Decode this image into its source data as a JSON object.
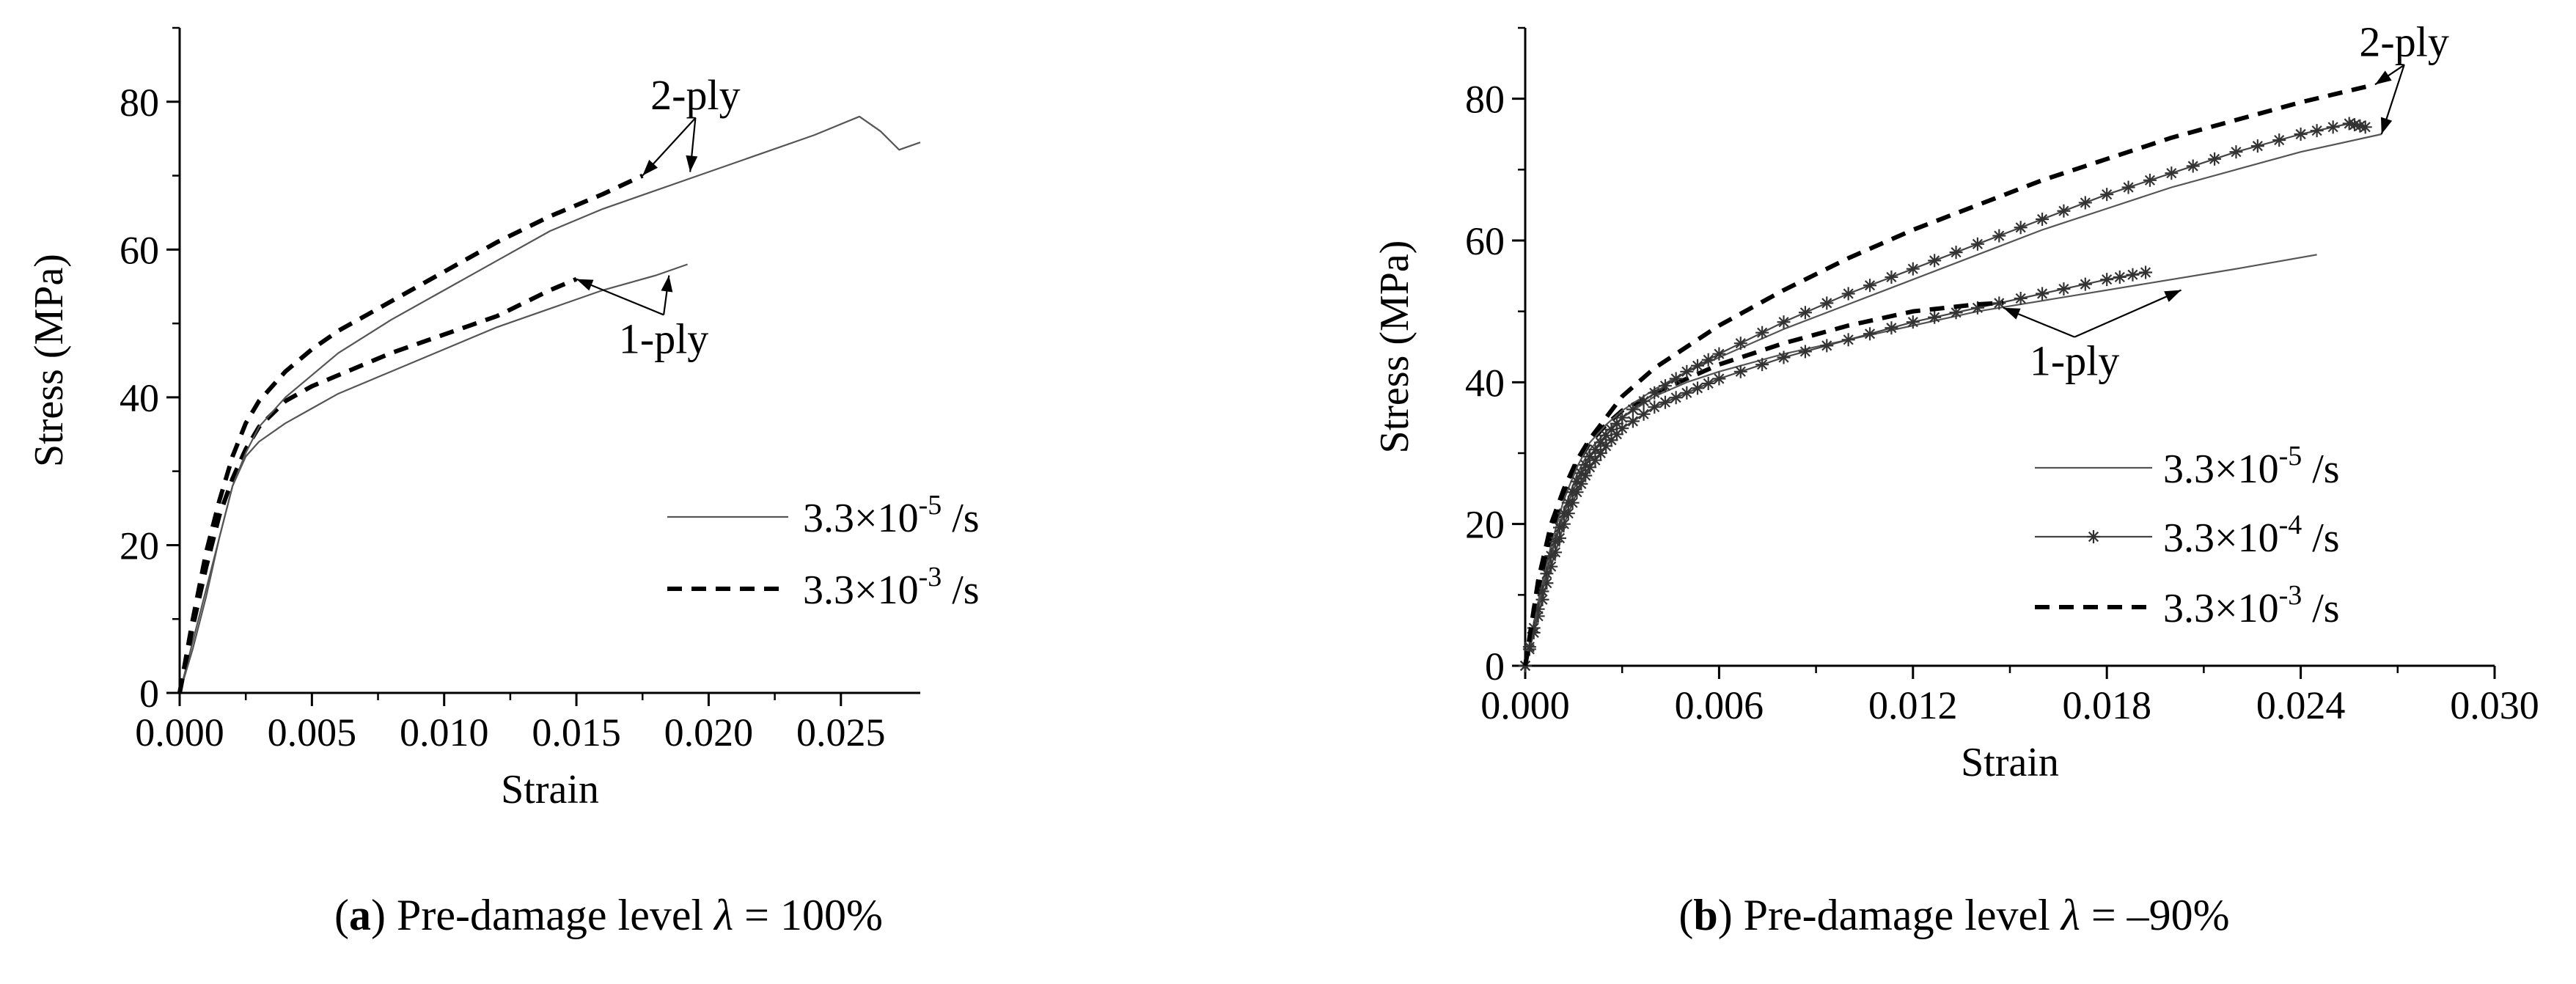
{
  "chart_data": [
    {
      "type": "line",
      "panel": "a",
      "caption": {
        "letter": "a",
        "text": " Pre-damage level ",
        "symbol": "λ",
        "value": " = 100%"
      },
      "xlabel": "Strain",
      "ylabel": "Stress (MPa)",
      "xlim": [
        0,
        0.028
      ],
      "ylim": [
        0,
        90
      ],
      "xticks": [
        {
          "value": 0,
          "label": "0.000"
        },
        {
          "value": 0.005,
          "label": "0.005"
        },
        {
          "value": 0.01,
          "label": "0.010"
        },
        {
          "value": 0.015,
          "label": "0.015"
        },
        {
          "value": 0.02,
          "label": "0.020"
        },
        {
          "value": 0.025,
          "label": "0.025"
        }
      ],
      "yticks": [
        {
          "value": 0,
          "label": "0"
        },
        {
          "value": 20,
          "label": "20"
        },
        {
          "value": 40,
          "label": "40"
        },
        {
          "value": 60,
          "label": "60"
        },
        {
          "value": 80,
          "label": "80"
        }
      ],
      "legend": [
        {
          "base": "3.3×10",
          "exp": "-5",
          "unit": " /s",
          "style": "solid"
        },
        {
          "base": "3.3×10",
          "exp": "-3",
          "unit": " /s",
          "style": "dashed"
        }
      ],
      "annotations": [
        {
          "text": "2-ply",
          "x": 0.0195,
          "y": 79,
          "arrows": [
            [
              0.0175,
              70
            ],
            [
              0.0193,
              70.5
            ]
          ]
        },
        {
          "text": "1-ply",
          "x": 0.0183,
          "y": 46,
          "arrows": [
            [
              0.015,
              56
            ],
            [
              0.0185,
              56.5
            ]
          ]
        }
      ],
      "series": [
        {
          "name": "1-ply 3.3×10^-5 /s",
          "style": "solid",
          "x": [
            0,
            0.0005,
            0.001,
            0.0015,
            0.002,
            0.0025,
            0.003,
            0.004,
            0.005,
            0.006,
            0.008,
            0.01,
            0.012,
            0.014,
            0.016,
            0.018,
            0.0192
          ],
          "y": [
            0,
            7,
            14,
            21,
            28,
            32,
            34,
            36.5,
            38.5,
            40.5,
            43.5,
            46.5,
            49.5,
            52,
            54.5,
            56.5,
            58
          ]
        },
        {
          "name": "1-ply 3.3×10^-3 /s",
          "style": "dashed",
          "x": [
            0,
            0.0005,
            0.001,
            0.0015,
            0.002,
            0.0025,
            0.003,
            0.004,
            0.005,
            0.006,
            0.008,
            0.01,
            0.012,
            0.014,
            0.015
          ],
          "y": [
            0,
            9,
            17,
            24,
            29,
            33,
            36,
            39.5,
            41.5,
            43,
            46,
            48.5,
            51,
            54.5,
            56
          ]
        },
        {
          "name": "2-ply 3.3×10^-5 /s",
          "style": "solid",
          "x": [
            0,
            0.0005,
            0.001,
            0.0015,
            0.002,
            0.0025,
            0.003,
            0.004,
            0.005,
            0.006,
            0.008,
            0.01,
            0.012,
            0.014,
            0.016,
            0.018,
            0.02,
            0.022,
            0.024,
            0.0257,
            0.0265,
            0.0272,
            0.028
          ],
          "y": [
            0,
            6,
            13,
            21,
            28,
            32.5,
            36,
            40,
            43,
            46,
            50.5,
            54.5,
            58.5,
            62.5,
            65.5,
            68,
            70.5,
            73,
            75.5,
            78,
            76,
            73.5,
            74.5
          ]
        },
        {
          "name": "2-ply 3.3×10^-3 /s",
          "style": "dashed",
          "x": [
            0,
            0.0005,
            0.001,
            0.0015,
            0.002,
            0.0025,
            0.003,
            0.004,
            0.005,
            0.006,
            0.008,
            0.01,
            0.012,
            0.014,
            0.016,
            0.0175
          ],
          "y": [
            0,
            10,
            19,
            26,
            32,
            36.5,
            39.5,
            43.5,
            46.5,
            49,
            53,
            57,
            61,
            64.5,
            67.5,
            70
          ]
        }
      ]
    },
    {
      "type": "line",
      "panel": "b",
      "caption": {
        "letter": "b",
        "text": " Pre-damage level ",
        "symbol": "λ",
        "value": " = –90%"
      },
      "xlabel": "Strain",
      "ylabel": "Stress (MPa)",
      "xlim": [
        0,
        0.03
      ],
      "ylim": [
        0,
        90
      ],
      "xticks": [
        {
          "value": 0,
          "label": "0.000"
        },
        {
          "value": 0.006,
          "label": "0.006"
        },
        {
          "value": 0.012,
          "label": "0.012"
        },
        {
          "value": 0.018,
          "label": "0.018"
        },
        {
          "value": 0.024,
          "label": "0.024"
        },
        {
          "value": 0.03,
          "label": "0.030"
        }
      ],
      "yticks": [
        {
          "value": 0,
          "label": "0"
        },
        {
          "value": 20,
          "label": "20"
        },
        {
          "value": 40,
          "label": "40"
        },
        {
          "value": 60,
          "label": "60"
        },
        {
          "value": 80,
          "label": "80"
        }
      ],
      "legend": [
        {
          "base": "3.3×10",
          "exp": "-5",
          "unit": " /s",
          "style": "solid"
        },
        {
          "base": "3.3×10",
          "exp": "-4",
          "unit": " /s",
          "style": "star"
        },
        {
          "base": "3.3×10",
          "exp": "-3",
          "unit": " /s",
          "style": "dashed"
        }
      ],
      "annotations": [
        {
          "text": "2-ply",
          "x": 0.0272,
          "y": 86,
          "arrows": [
            [
              0.0263,
              82
            ],
            [
              0.0265,
              75
            ]
          ]
        },
        {
          "text": "1-ply",
          "x": 0.017,
          "y": 41,
          "arrows": [
            [
              0.0148,
              50.5
            ],
            [
              0.0203,
              53
            ]
          ]
        }
      ],
      "series": [
        {
          "name": "1-ply 3.3×10^-5 /s",
          "style": "solid",
          "x": [
            0,
            0.0004,
            0.0008,
            0.0012,
            0.0016,
            0.002,
            0.0025,
            0.003,
            0.004,
            0.005,
            0.006,
            0.008,
            0.01,
            0.012,
            0.014,
            0.016,
            0.018,
            0.02,
            0.022,
            0.0245
          ],
          "y": [
            0,
            8,
            16,
            22,
            27,
            30.5,
            33,
            35,
            38,
            40,
            41.5,
            44,
            46,
            48,
            50,
            51.5,
            53,
            54.5,
            56,
            58
          ]
        },
        {
          "name": "1-ply 3.3×10^-4 /s",
          "style": "star",
          "x": [
            0,
            0.0004,
            0.0008,
            0.0012,
            0.0016,
            0.002,
            0.0025,
            0.003,
            0.004,
            0.005,
            0.006,
            0.008,
            0.01,
            0.012,
            0.014,
            0.016,
            0.018,
            0.0192
          ],
          "y": [
            0,
            7,
            14,
            20,
            24.5,
            28,
            31,
            33.5,
            36.5,
            38.5,
            40.5,
            43.5,
            46,
            48.5,
            50.5,
            52.5,
            54.5,
            55.5
          ]
        },
        {
          "name": "1-ply 3.3×10^-3 /s",
          "style": "dashed",
          "x": [
            0,
            0.0004,
            0.0008,
            0.0012,
            0.0016,
            0.002,
            0.0025,
            0.003,
            0.004,
            0.005,
            0.006,
            0.008,
            0.01,
            0.012,
            0.014,
            0.0148
          ],
          "y": [
            0,
            10,
            18,
            24,
            28.5,
            31.5,
            34,
            36,
            38.5,
            40.5,
            42.5,
            45.5,
            48,
            50,
            51,
            51.2
          ]
        },
        {
          "name": "2-ply 3.3×10^-5 /s",
          "style": "solid",
          "x": [
            0,
            0.0004,
            0.0008,
            0.0012,
            0.0016,
            0.002,
            0.0025,
            0.003,
            0.004,
            0.005,
            0.006,
            0.008,
            0.01,
            0.012,
            0.014,
            0.016,
            0.018,
            0.02,
            0.022,
            0.024,
            0.0265
          ],
          "y": [
            0,
            9,
            17,
            23.5,
            28,
            31.5,
            34,
            36,
            39,
            41.5,
            43.5,
            47.5,
            51,
            54.5,
            58,
            61.5,
            64.5,
            67.5,
            70,
            72.5,
            75
          ]
        },
        {
          "name": "2-ply 3.3×10^-4 /s",
          "style": "star",
          "x": [
            0,
            0.0004,
            0.0008,
            0.0012,
            0.0016,
            0.002,
            0.0025,
            0.003,
            0.004,
            0.005,
            0.006,
            0.008,
            0.01,
            0.012,
            0.014,
            0.016,
            0.018,
            0.02,
            0.022,
            0.024,
            0.0255,
            0.026
          ],
          "y": [
            0,
            8,
            15.5,
            21.5,
            26,
            29.5,
            32.5,
            35,
            38.5,
            41.5,
            44,
            48.5,
            52.5,
            56,
            59.5,
            63,
            66.5,
            69.5,
            72.5,
            75,
            76.5,
            76
          ]
        },
        {
          "name": "2-ply 3.3×10^-3 /s",
          "style": "dashed",
          "x": [
            0,
            0.0004,
            0.0008,
            0.0012,
            0.0016,
            0.002,
            0.0025,
            0.003,
            0.0035,
            0.004,
            0.006,
            0.008,
            0.01,
            0.012,
            0.014,
            0.016,
            0.018,
            0.02,
            0.022,
            0.024,
            0.0263
          ],
          "y": [
            0,
            12,
            20,
            25,
            29,
            32,
            35,
            38,
            40,
            42,
            48,
            53,
            57.5,
            61.5,
            65,
            68.5,
            71.5,
            74.5,
            77,
            79.5,
            82
          ]
        }
      ]
    }
  ]
}
